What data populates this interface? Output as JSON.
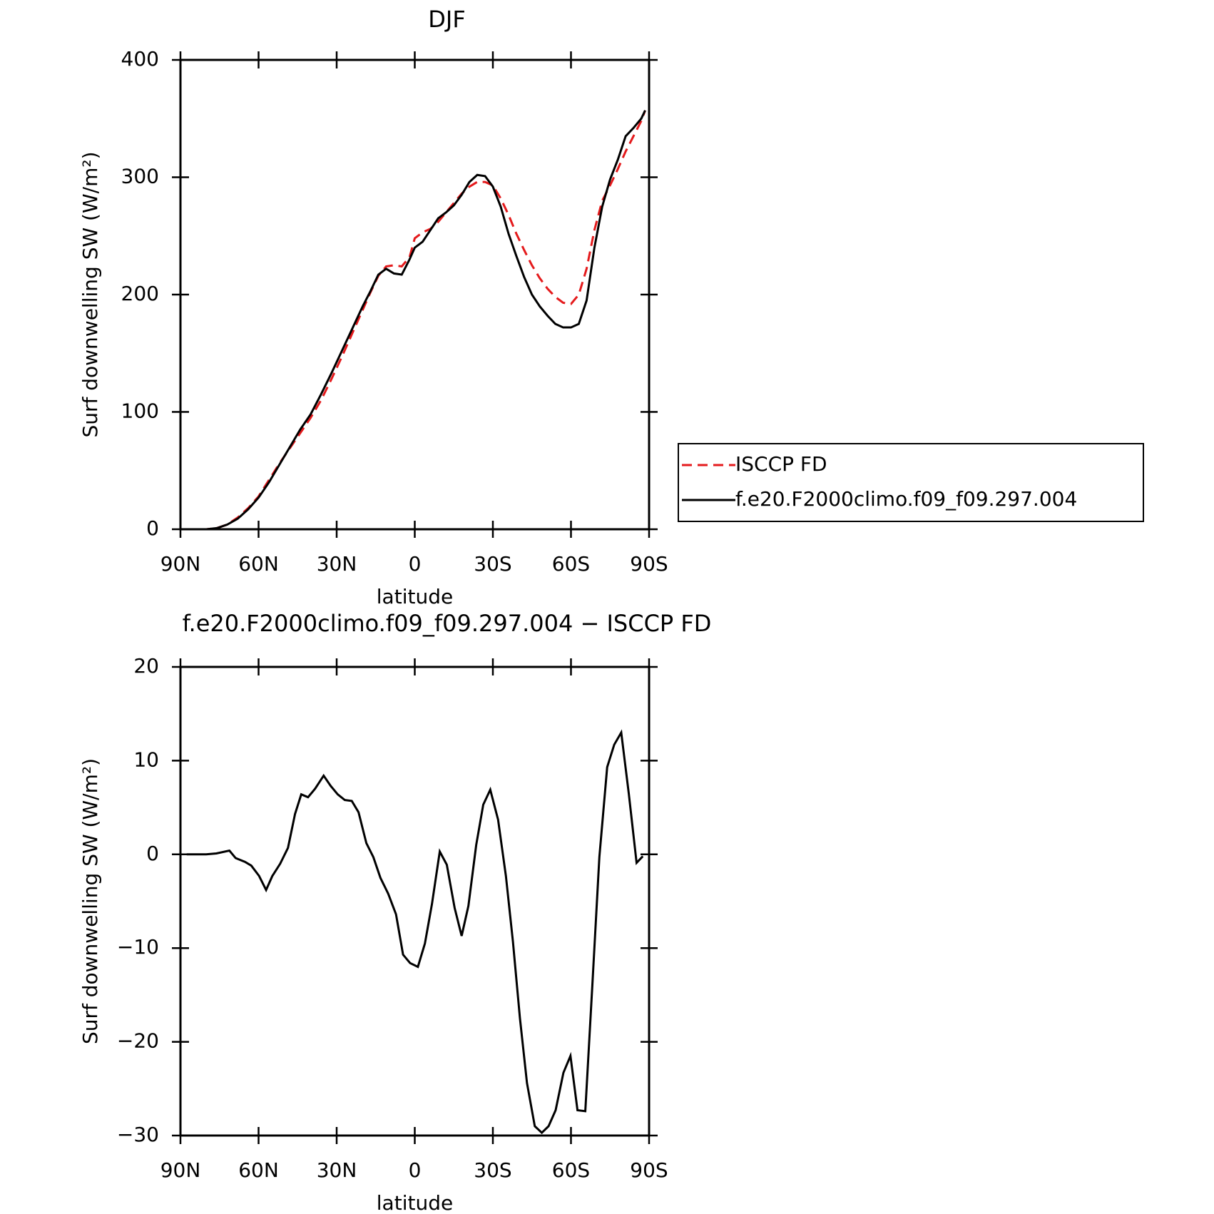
{
  "chart_data": [
    {
      "type": "line",
      "title": "DJF",
      "xlabel": "latitude",
      "ylabel": "Surf downwelling SW (W/m²)",
      "x": [
        88,
        84,
        80,
        76,
        72,
        68,
        64,
        60,
        56,
        52,
        48,
        44,
        40,
        36,
        32,
        28,
        24,
        20,
        17,
        14,
        11,
        8,
        5,
        2,
        0,
        -3,
        -6,
        -9,
        -12,
        -15,
        -18,
        -21,
        -24,
        -27,
        -30,
        -33,
        -36,
        -39,
        -42,
        -45,
        -48,
        -51,
        -54,
        -57,
        -60,
        -63,
        -66,
        -69,
        -72,
        -75,
        -78,
        -81,
        -84,
        -87,
        -88.5
      ],
      "series": [
        {
          "name": "ISCCP FD",
          "color": "#e41a1c",
          "dashed": true,
          "values": [
            0,
            0,
            0,
            1,
            4,
            10,
            18,
            28,
            42,
            56,
            69,
            82,
            95,
            110,
            128,
            147,
            167,
            187,
            202,
            216,
            224,
            225,
            224,
            232,
            248,
            253,
            256,
            262,
            270,
            278,
            286,
            292,
            296,
            296,
            293,
            282,
            268,
            252,
            238,
            225,
            214,
            205,
            198,
            193,
            192,
            200,
            222,
            255,
            280,
            293,
            307,
            322,
            335,
            348,
            357
          ]
        },
        {
          "name": "f.e20.F2000climo.f09_f09.297.004",
          "color": "#000000",
          "dashed": false,
          "values": [
            0,
            0,
            0,
            1,
            4,
            9,
            17,
            27,
            40,
            55,
            70,
            85,
            98,
            115,
            133,
            152,
            171,
            190,
            203,
            217,
            222,
            218,
            217,
            230,
            240,
            245,
            255,
            265,
            270,
            276,
            285,
            296,
            302,
            301,
            292,
            275,
            252,
            233,
            215,
            200,
            190,
            182,
            175,
            172,
            172,
            175,
            195,
            240,
            275,
            298,
            315,
            335,
            342,
            350,
            357
          ]
        }
      ],
      "xlim": [
        90,
        -90
      ],
      "xticks": [
        {
          "value": 90,
          "label": "90N"
        },
        {
          "value": 60,
          "label": "60N"
        },
        {
          "value": 30,
          "label": "30N"
        },
        0,
        {
          "value": -30,
          "label": "30S"
        },
        {
          "value": -60,
          "label": "60S"
        },
        {
          "value": -90,
          "label": "90S"
        }
      ],
      "ylim": [
        0,
        400
      ],
      "yticks": [
        0,
        100,
        200,
        300,
        400
      ],
      "legend": "right"
    },
    {
      "type": "line",
      "title": "f.e20.F2000climo.f09_f09.297.004 − ISCCP FD",
      "xlabel": "latitude",
      "ylabel": "Surf downwelling SW (W/m²)",
      "x": [
        87.6,
        80.1,
        76.2,
        71.2,
        68.8,
        65.2,
        62.8,
        59.8,
        57.1,
        54.7,
        51.7,
        48.7,
        46,
        43.6,
        41,
        38.3,
        35,
        32.3,
        29.6,
        26.9,
        24.2,
        21.6,
        18.6,
        15.9,
        13.2,
        10.2,
        7.2,
        4.5,
        1.8,
        -1.2,
        -3.9,
        -6.6,
        -9.6,
        -12.3,
        -15.3,
        -18,
        -20.6,
        -23.6,
        -26.3,
        -29,
        -32,
        -35,
        -37.7,
        -40.4,
        -43.1,
        -46.1,
        -48.8,
        -51.4,
        -54.1,
        -57.1,
        -59.8,
        -62.5,
        -65.5,
        -68.2,
        -70.9,
        -73.9,
        -76.6,
        -79.3,
        -82.2,
        -85.2,
        -87.6
      ],
      "values": [
        0,
        0,
        0.1,
        0.4,
        -0.4,
        -0.8,
        -1.2,
        -2.3,
        -3.8,
        -2.3,
        -1,
        0.7,
        4.3,
        6.4,
        6.1,
        7,
        8.4,
        7.3,
        6.4,
        5.8,
        5.7,
        4.5,
        1.2,
        -0.3,
        -2.5,
        -4.2,
        -6.4,
        -10.7,
        -11.6,
        -12,
        -9.5,
        -5.3,
        0.3,
        -1.1,
        -5.7,
        -8.7,
        -5.5,
        1,
        5.3,
        6.9,
        3.7,
        -2.3,
        -9.3,
        -17.5,
        -24.4,
        -29,
        -29.7,
        -29,
        -27.3,
        -23.3,
        -21.5,
        -27.3,
        -27.4,
        -14,
        -0.3,
        9.3,
        11.7,
        13,
        6.5,
        -0.9,
        -0.2
      ],
      "color": "#000000",
      "xlim": [
        90,
        -90
      ],
      "xticks": [
        {
          "value": 90,
          "label": "90N"
        },
        {
          "value": 60,
          "label": "60N"
        },
        {
          "value": 30,
          "label": "30N"
        },
        0,
        {
          "value": -30,
          "label": "30S"
        },
        {
          "value": -60,
          "label": "60S"
        },
        {
          "value": -90,
          "label": "90S"
        }
      ],
      "ylim": [
        -30,
        20
      ],
      "yticks": [
        {
          "value": -30,
          "label": "−30"
        },
        {
          "value": -20,
          "label": "−20"
        },
        {
          "value": -10,
          "label": "−10"
        },
        0,
        10,
        20
      ]
    }
  ]
}
